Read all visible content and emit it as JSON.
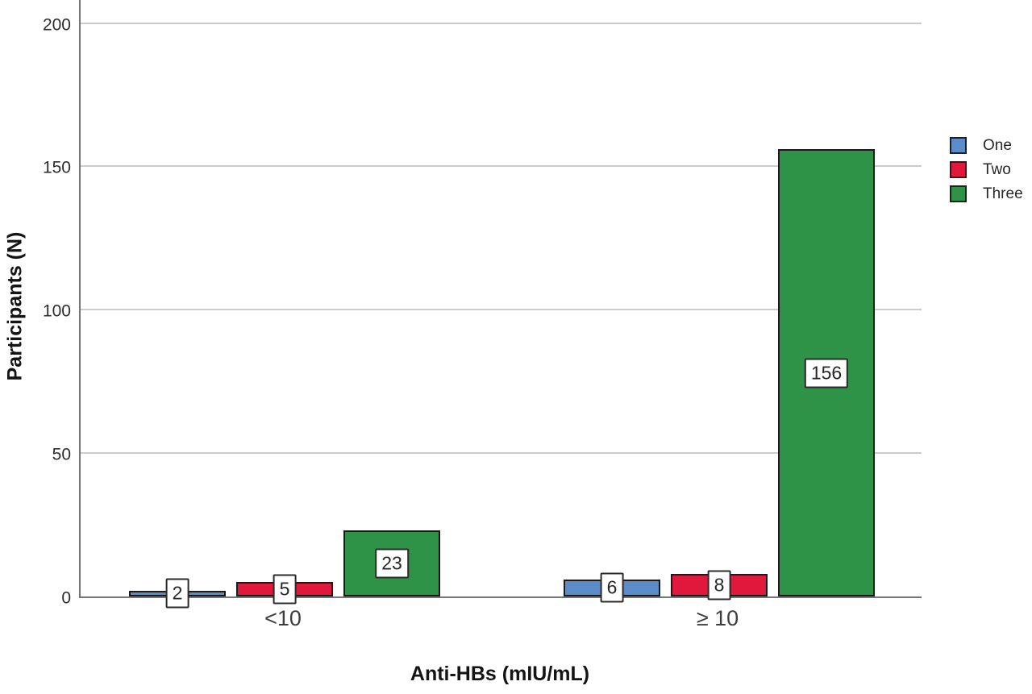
{
  "chart_data": {
    "type": "bar",
    "title": "",
    "categories": [
      "<10",
      "≥ 10"
    ],
    "series": [
      {
        "name": "One",
        "color": "#5b8cc9",
        "values": [
          2,
          6
        ]
      },
      {
        "name": "Two",
        "color": "#e0193c",
        "values": [
          5,
          8
        ]
      },
      {
        "name": "Three",
        "color": "#2e9347",
        "values": [
          23,
          156
        ]
      }
    ],
    "bar_value_labels": [
      [
        "2",
        "5",
        "23"
      ],
      [
        "6",
        "8",
        "156"
      ]
    ],
    "xlabel": "Anti-HBs (mIU/mL)",
    "ylabel": "Participants (N)",
    "yticks": [
      0,
      50,
      100,
      150,
      200
    ],
    "ylim": [
      0,
      208.6
    ],
    "grid": true,
    "legend_position": "right",
    "legend_entries": [
      "One",
      "Two",
      "Three"
    ]
  }
}
